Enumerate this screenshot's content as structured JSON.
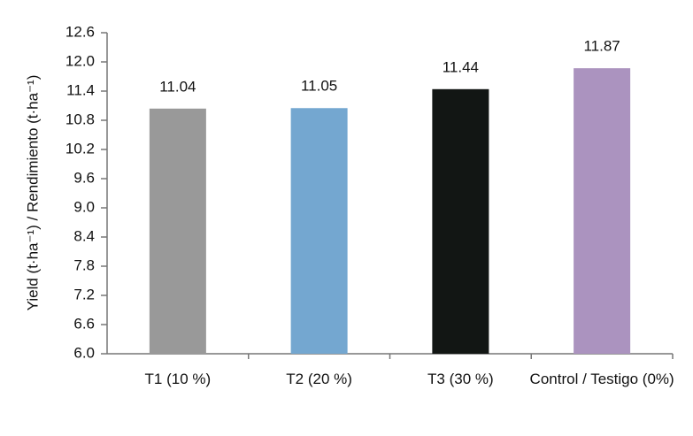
{
  "chart_data": {
    "type": "bar",
    "y_label": "Yield (t·ha⁻¹) / Rendimiento (t·ha⁻¹)",
    "categories": [
      "T1 (10 %)",
      "T2 (20 %)",
      "T3 (30 %)",
      "Control / Testigo (0%)"
    ],
    "values": [
      11.04,
      11.05,
      11.44,
      11.87
    ],
    "colors": [
      "#999999",
      "#74a7d0",
      "#121614",
      "#ab93bf"
    ],
    "ylim": [
      6,
      12.6
    ],
    "yticks": [
      {
        "value": 6,
        "label": "6.0"
      },
      6.6,
      7.2,
      7.8,
      8.4,
      {
        "value": 9,
        "label": "9.0"
      },
      9.6,
      10.2,
      10.8,
      11.4,
      {
        "value": 12,
        "label": "12.0"
      },
      12.6
    ],
    "grid": false
  }
}
